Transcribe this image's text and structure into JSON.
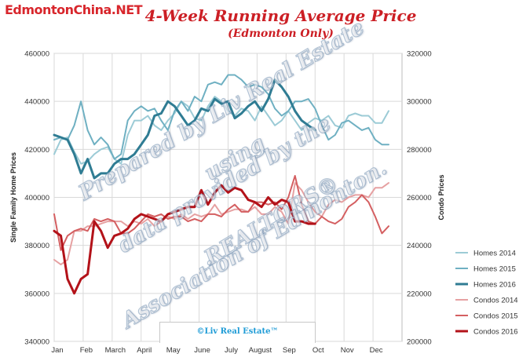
{
  "brand": "EdmontonChina.NET",
  "title": "4-Week Running Average Price",
  "subtitle": "(Edmonton Only)",
  "watermark": {
    "line1": "Prepared by Liv Real Estate",
    "line2": "using",
    "line3": "data provided by the",
    "line4": "REALTORS®",
    "line5": "Association of Edmonton."
  },
  "credit": "©Liv Real Estate™",
  "chart_data": {
    "type": "line",
    "title": "4-Week Running Average Price",
    "subtitle": "(Edmonton Only)",
    "x_labels": [
      "Jan",
      "Feb",
      "March",
      "April",
      "May",
      "June",
      "July",
      "August",
      "Sep",
      "Oct",
      "Nov",
      "Dec"
    ],
    "x_range": [
      0,
      52
    ],
    "y_left": {
      "label": "Single Family Home Prices",
      "range": [
        340000,
        460000
      ],
      "ticks": [
        "340000",
        "360000",
        "380000",
        "400000",
        "420000",
        "440000",
        "460000"
      ]
    },
    "y_right": {
      "label": "Condo Prices",
      "range": [
        200000,
        320000
      ],
      "ticks": [
        "200000",
        "220000",
        "240000",
        "260000",
        "280000",
        "300000",
        "320000"
      ]
    },
    "grid": true,
    "legend_position": "right",
    "series": [
      {
        "name": "Homes 2014",
        "axis": "left",
        "color": "#9ccbd6",
        "width": 2,
        "points": [
          [
            0,
            418000
          ],
          [
            1,
            424000
          ],
          [
            2,
            425000
          ],
          [
            3,
            419000
          ],
          [
            4,
            414000
          ],
          [
            5,
            415000
          ],
          [
            6,
            418000
          ],
          [
            7,
            420000
          ],
          [
            8,
            421000
          ],
          [
            9,
            416000
          ],
          [
            10,
            414000
          ],
          [
            11,
            426000
          ],
          [
            12,
            432000
          ],
          [
            13,
            432000
          ],
          [
            14,
            434000
          ],
          [
            15,
            430000
          ],
          [
            16,
            428000
          ],
          [
            17,
            432000
          ],
          [
            18,
            435000
          ],
          [
            19,
            440000
          ],
          [
            20,
            438000
          ],
          [
            21,
            433000
          ],
          [
            22,
            432000
          ],
          [
            23,
            438000
          ],
          [
            24,
            442000
          ],
          [
            25,
            440000
          ],
          [
            26,
            436000
          ],
          [
            27,
            434000
          ],
          [
            28,
            437000
          ],
          [
            29,
            436000
          ],
          [
            30,
            432000
          ],
          [
            31,
            438000
          ],
          [
            32,
            434000
          ],
          [
            33,
            430000
          ],
          [
            34,
            432000
          ],
          [
            35,
            436000
          ],
          [
            36,
            432000
          ],
          [
            37,
            428000
          ],
          [
            38,
            431000
          ],
          [
            39,
            433000
          ],
          [
            40,
            432000
          ],
          [
            41,
            434000
          ],
          [
            42,
            430000
          ],
          [
            43,
            429000
          ],
          [
            44,
            434000
          ],
          [
            45,
            435000
          ],
          [
            46,
            434000
          ],
          [
            47,
            434000
          ],
          [
            48,
            431000
          ],
          [
            49,
            431000
          ],
          [
            50,
            436000
          ]
        ]
      },
      {
        "name": "Homes 2015",
        "axis": "left",
        "color": "#6fb0c2",
        "width": 2,
        "points": [
          [
            0,
            424000
          ],
          [
            1,
            425000
          ],
          [
            2,
            424000
          ],
          [
            3,
            430000
          ],
          [
            4,
            440000
          ],
          [
            5,
            428000
          ],
          [
            6,
            422000
          ],
          [
            7,
            425000
          ],
          [
            8,
            422000
          ],
          [
            9,
            416000
          ],
          [
            10,
            418000
          ],
          [
            11,
            432000
          ],
          [
            12,
            436000
          ],
          [
            13,
            438000
          ],
          [
            14,
            436000
          ],
          [
            15,
            437000
          ],
          [
            16,
            432000
          ],
          [
            17,
            428000
          ],
          [
            18,
            436000
          ],
          [
            19,
            440000
          ],
          [
            20,
            436000
          ],
          [
            21,
            442000
          ],
          [
            22,
            440000
          ],
          [
            23,
            447000
          ],
          [
            24,
            448000
          ],
          [
            25,
            447000
          ],
          [
            26,
            451000
          ],
          [
            27,
            451000
          ],
          [
            28,
            449000
          ],
          [
            29,
            446000
          ],
          [
            30,
            447000
          ],
          [
            31,
            446000
          ],
          [
            32,
            443000
          ],
          [
            33,
            437000
          ],
          [
            34,
            434000
          ],
          [
            35,
            436000
          ],
          [
            36,
            440000
          ],
          [
            37,
            440000
          ],
          [
            38,
            441000
          ],
          [
            39,
            437000
          ],
          [
            40,
            430000
          ],
          [
            41,
            424000
          ],
          [
            42,
            426000
          ],
          [
            43,
            431000
          ],
          [
            44,
            432000
          ],
          [
            45,
            430000
          ],
          [
            46,
            428000
          ],
          [
            47,
            429000
          ],
          [
            48,
            424000
          ],
          [
            49,
            422000
          ],
          [
            50,
            422000
          ]
        ]
      },
      {
        "name": "Homes 2016",
        "axis": "left",
        "color": "#2f7c93",
        "width": 3,
        "points": [
          [
            0,
            426000
          ],
          [
            1,
            425000
          ],
          [
            2,
            424000
          ],
          [
            3,
            418000
          ],
          [
            4,
            410000
          ],
          [
            5,
            416000
          ],
          [
            6,
            408000
          ],
          [
            7,
            410000
          ],
          [
            8,
            410000
          ],
          [
            9,
            414000
          ],
          [
            10,
            416000
          ],
          [
            11,
            416000
          ],
          [
            12,
            418000
          ],
          [
            13,
            422000
          ],
          [
            14,
            426000
          ],
          [
            15,
            434000
          ],
          [
            16,
            435000
          ],
          [
            17,
            440000
          ],
          [
            18,
            438000
          ],
          [
            19,
            434000
          ],
          [
            20,
            430000
          ],
          [
            21,
            432000
          ],
          [
            22,
            437000
          ],
          [
            23,
            436000
          ],
          [
            24,
            441000
          ],
          [
            25,
            439000
          ],
          [
            26,
            440000
          ],
          [
            27,
            433000
          ],
          [
            28,
            435000
          ],
          [
            29,
            438000
          ],
          [
            30,
            440000
          ],
          [
            31,
            436000
          ],
          [
            32,
            441000
          ],
          [
            33,
            449000
          ],
          [
            34,
            446000
          ],
          [
            35,
            442000
          ],
          [
            36,
            436000
          ],
          [
            37,
            432000
          ],
          [
            38,
            430000
          ],
          [
            39,
            428000
          ]
        ]
      },
      {
        "name": "Condos 2014",
        "axis": "right",
        "color": "#e6a1a2",
        "width": 2,
        "points": [
          [
            0,
            234000
          ],
          [
            1,
            232000
          ],
          [
            2,
            234000
          ],
          [
            3,
            246000
          ],
          [
            4,
            246000
          ],
          [
            5,
            248000
          ],
          [
            6,
            248000
          ],
          [
            7,
            249000
          ],
          [
            8,
            250000
          ],
          [
            9,
            250000
          ],
          [
            10,
            250000
          ],
          [
            11,
            248000
          ],
          [
            12,
            250000
          ],
          [
            13,
            249000
          ],
          [
            14,
            251000
          ],
          [
            15,
            248000
          ],
          [
            16,
            250000
          ],
          [
            17,
            252000
          ],
          [
            18,
            251000
          ],
          [
            19,
            253000
          ],
          [
            20,
            251000
          ],
          [
            21,
            253000
          ],
          [
            22,
            252000
          ],
          [
            23,
            253000
          ],
          [
            24,
            257000
          ],
          [
            25,
            253000
          ],
          [
            26,
            254000
          ],
          [
            27,
            255000
          ],
          [
            28,
            255000
          ],
          [
            29,
            254000
          ],
          [
            30,
            256000
          ],
          [
            31,
            253000
          ],
          [
            32,
            253000
          ],
          [
            33,
            256000
          ],
          [
            34,
            254000
          ],
          [
            35,
            249000
          ],
          [
            36,
            266000
          ],
          [
            37,
            263000
          ],
          [
            38,
            258000
          ],
          [
            39,
            254000
          ],
          [
            40,
            252000
          ],
          [
            41,
            257000
          ],
          [
            42,
            259000
          ],
          [
            43,
            258000
          ],
          [
            44,
            260000
          ],
          [
            45,
            261000
          ],
          [
            46,
            261000
          ],
          [
            47,
            260000
          ],
          [
            48,
            264000
          ],
          [
            49,
            264000
          ],
          [
            50,
            266000
          ]
        ]
      },
      {
        "name": "Condos 2015",
        "axis": "right",
        "color": "#d45f61",
        "width": 2,
        "points": [
          [
            0,
            253000
          ],
          [
            1,
            238000
          ],
          [
            2,
            244000
          ],
          [
            3,
            246000
          ],
          [
            4,
            247000
          ],
          [
            5,
            246000
          ],
          [
            6,
            251000
          ],
          [
            7,
            250000
          ],
          [
            8,
            251000
          ],
          [
            9,
            250000
          ],
          [
            10,
            245000
          ],
          [
            11,
            245000
          ],
          [
            12,
            247000
          ],
          [
            13,
            250000
          ],
          [
            14,
            253000
          ],
          [
            15,
            252000
          ],
          [
            16,
            253000
          ],
          [
            17,
            251000
          ],
          [
            18,
            252000
          ],
          [
            19,
            252000
          ],
          [
            20,
            250000
          ],
          [
            21,
            251000
          ],
          [
            22,
            250000
          ],
          [
            23,
            253000
          ],
          [
            24,
            253000
          ],
          [
            25,
            252000
          ],
          [
            26,
            255000
          ],
          [
            27,
            257000
          ],
          [
            28,
            254000
          ],
          [
            29,
            254000
          ],
          [
            30,
            258000
          ],
          [
            31,
            258000
          ],
          [
            32,
            257000
          ],
          [
            33,
            258000
          ],
          [
            34,
            255000
          ],
          [
            35,
            260000
          ],
          [
            36,
            269000
          ],
          [
            37,
            257000
          ],
          [
            38,
            250000
          ],
          [
            39,
            249000
          ],
          [
            40,
            252000
          ],
          [
            41,
            250000
          ],
          [
            42,
            249000
          ],
          [
            43,
            251000
          ],
          [
            44,
            256000
          ],
          [
            45,
            258000
          ],
          [
            46,
            261000
          ],
          [
            47,
            258000
          ],
          [
            48,
            252000
          ],
          [
            49,
            245000
          ],
          [
            50,
            248000
          ]
        ]
      },
      {
        "name": "Condos 2016",
        "axis": "right",
        "color": "#b31219",
        "width": 3,
        "points": [
          [
            0,
            246000
          ],
          [
            1,
            244000
          ],
          [
            2,
            226000
          ],
          [
            3,
            220000
          ],
          [
            4,
            226000
          ],
          [
            5,
            228000
          ],
          [
            6,
            250000
          ],
          [
            7,
            246000
          ],
          [
            8,
            239000
          ],
          [
            9,
            244000
          ],
          [
            10,
            245000
          ],
          [
            11,
            247000
          ],
          [
            12,
            251000
          ],
          [
            13,
            253000
          ],
          [
            14,
            252000
          ],
          [
            15,
            251000
          ],
          [
            16,
            250000
          ],
          [
            17,
            253000
          ],
          [
            18,
            254000
          ],
          [
            19,
            255000
          ],
          [
            20,
            256000
          ],
          [
            21,
            256000
          ],
          [
            22,
            263000
          ],
          [
            23,
            257000
          ],
          [
            24,
            262000
          ],
          [
            25,
            265000
          ],
          [
            26,
            262000
          ],
          [
            27,
            264000
          ],
          [
            28,
            263000
          ],
          [
            29,
            259000
          ],
          [
            30,
            258000
          ],
          [
            31,
            256000
          ],
          [
            32,
            260000
          ],
          [
            33,
            257000
          ],
          [
            34,
            259000
          ],
          [
            35,
            258000
          ],
          [
            36,
            250000
          ],
          [
            37,
            250000
          ],
          [
            38,
            249000
          ],
          [
            39,
            249000
          ]
        ]
      }
    ]
  }
}
